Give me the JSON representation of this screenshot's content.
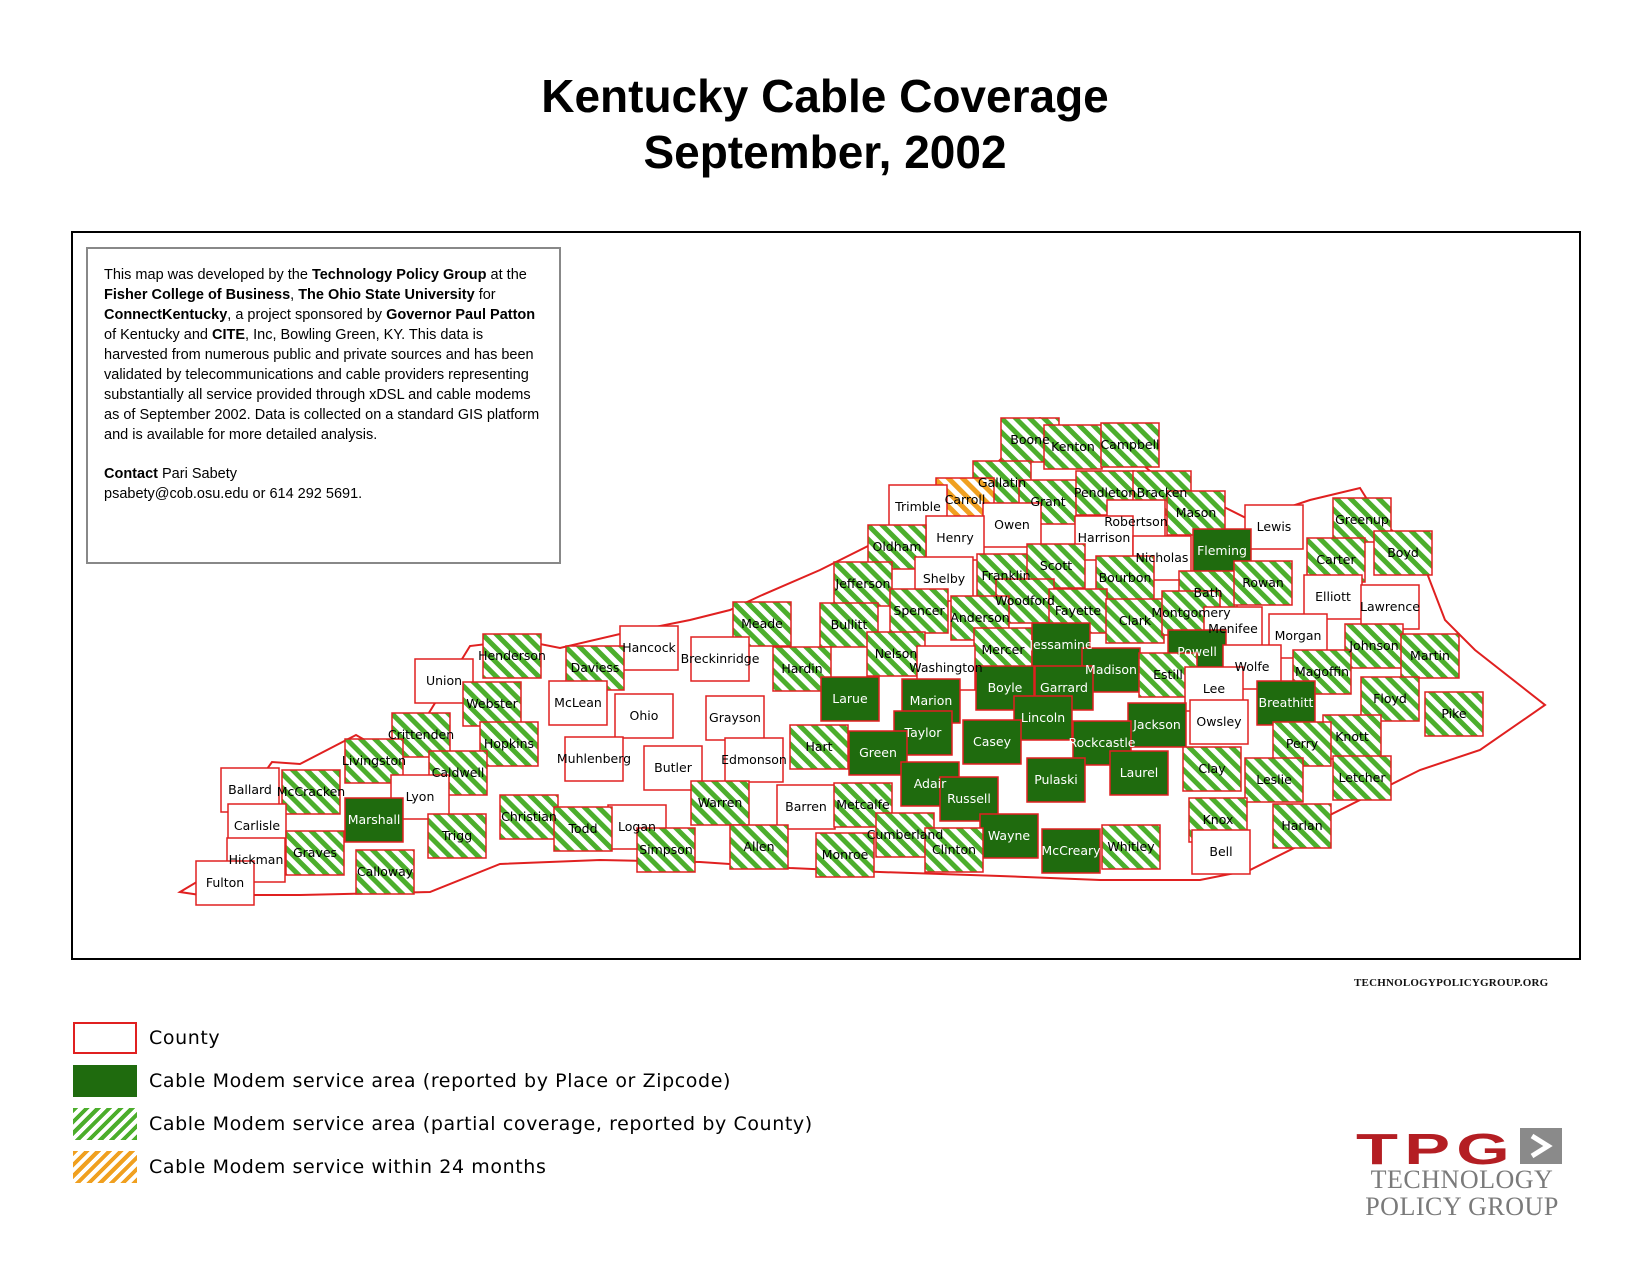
{
  "title": {
    "line1": "Kentucky Cable Coverage",
    "line2": "September, 2002"
  },
  "info": {
    "p1_a": "This map was developed by the ",
    "p1_b": "Technology Policy Group",
    "p1_c": " at the ",
    "p1_d": "Fisher College of Business",
    "p1_e": ", ",
    "p1_f": "The Ohio State University",
    "p1_g": " for ",
    "p1_h": "ConnectKentucky",
    "p1_i": ", a project sponsored by ",
    "p1_j": "Governor Paul Patton",
    "p1_k": " of Kentucky and ",
    "p1_l": "CITE",
    "p1_m": ", Inc, Bowling Green, KY.  This data is harvested from numerous public and private sources and has been validated by telecommunications and cable providers representing substantially all service provided through xDSL and cable modems as of September 2002.  Data is collected on a standard GIS platform and is available for more detailed analysis.",
    "contact_label": "Contact",
    "contact_name": " Pari Sabety",
    "contact_line": "psabety@cob.osu.edu or 614 292 5691."
  },
  "website": "TECHNOLOGYPOLICYGROUP.ORG",
  "legend": [
    {
      "label": "County",
      "style": "county"
    },
    {
      "label": "Cable Modem service area (reported by Place or Zipcode)",
      "style": "solid"
    },
    {
      "label": "Cable Modem service area (partial coverage, reported by County)",
      "style": "hatch-green"
    },
    {
      "label": "Cable Modem service within 24 months",
      "style": "hatch-orange"
    }
  ],
  "colors": {
    "county_border": "#e02020",
    "solid_green": "#1f6b0e",
    "hatch_green": "#4cae2c",
    "hatch_orange": "#f0a020",
    "logo_red": "#b41e23",
    "logo_grey": "#7a7a7a"
  },
  "logo": {
    "mark": "TPG",
    "line1": "TECHNOLOGY",
    "line2": "POLICY GROUP"
  },
  "counties": [
    {
      "name": "Boone",
      "coverage": "partial"
    },
    {
      "name": "Kenton",
      "coverage": "partial"
    },
    {
      "name": "Campbell",
      "coverage": "partial"
    },
    {
      "name": "Gallatin",
      "coverage": "partial"
    },
    {
      "name": "Carroll",
      "coverage": "within-24-months"
    },
    {
      "name": "Trimble",
      "coverage": "none"
    },
    {
      "name": "Grant",
      "coverage": "partial"
    },
    {
      "name": "Pendleton",
      "coverage": "partial"
    },
    {
      "name": "Bracken",
      "coverage": "partial"
    },
    {
      "name": "Mason",
      "coverage": "partial"
    },
    {
      "name": "Robertson",
      "coverage": "none"
    },
    {
      "name": "Owen",
      "coverage": "none"
    },
    {
      "name": "Henry",
      "coverage": "none"
    },
    {
      "name": "Harrison",
      "coverage": "none"
    },
    {
      "name": "Lewis",
      "coverage": "none"
    },
    {
      "name": "Greenup",
      "coverage": "partial"
    },
    {
      "name": "Boyd",
      "coverage": "partial"
    },
    {
      "name": "Fleming",
      "coverage": "place"
    },
    {
      "name": "Oldham",
      "coverage": "partial"
    },
    {
      "name": "Carter",
      "coverage": "partial"
    },
    {
      "name": "Nicholas",
      "coverage": "none"
    },
    {
      "name": "Shelby",
      "coverage": "none"
    },
    {
      "name": "Franklin",
      "coverage": "partial"
    },
    {
      "name": "Scott",
      "coverage": "partial"
    },
    {
      "name": "Bourbon",
      "coverage": "partial"
    },
    {
      "name": "Bath",
      "coverage": "partial"
    },
    {
      "name": "Rowan",
      "coverage": "partial"
    },
    {
      "name": "Elliott",
      "coverage": "none"
    },
    {
      "name": "Jefferson",
      "coverage": "partial"
    },
    {
      "name": "Woodford",
      "coverage": "partial"
    },
    {
      "name": "Lawrence",
      "coverage": "none"
    },
    {
      "name": "Spencer",
      "coverage": "partial"
    },
    {
      "name": "Anderson",
      "coverage": "partial"
    },
    {
      "name": "Fayette",
      "coverage": "partial"
    },
    {
      "name": "Clark",
      "coverage": "partial"
    },
    {
      "name": "Montgomery",
      "coverage": "partial"
    },
    {
      "name": "Meade",
      "coverage": "partial"
    },
    {
      "name": "Bullitt",
      "coverage": "partial"
    },
    {
      "name": "Menifee",
      "coverage": "none"
    },
    {
      "name": "Morgan",
      "coverage": "none"
    },
    {
      "name": "Johnson",
      "coverage": "partial"
    },
    {
      "name": "Hancock",
      "coverage": "none"
    },
    {
      "name": "Nelson",
      "coverage": "partial"
    },
    {
      "name": "Mercer",
      "coverage": "partial"
    },
    {
      "name": "Jessamine",
      "coverage": "place"
    },
    {
      "name": "Powell",
      "coverage": "place"
    },
    {
      "name": "Martin",
      "coverage": "partial"
    },
    {
      "name": "Henderson",
      "coverage": "partial"
    },
    {
      "name": "Daviess",
      "coverage": "partial"
    },
    {
      "name": "Breckinridge",
      "coverage": "none"
    },
    {
      "name": "Hardin",
      "coverage": "partial"
    },
    {
      "name": "Washington",
      "coverage": "none"
    },
    {
      "name": "Madison",
      "coverage": "place"
    },
    {
      "name": "Estill",
      "coverage": "partial"
    },
    {
      "name": "Wolfe",
      "coverage": "none"
    },
    {
      "name": "Magoffin",
      "coverage": "partial"
    },
    {
      "name": "Union",
      "coverage": "none"
    },
    {
      "name": "Boyle",
      "coverage": "place"
    },
    {
      "name": "Garrard",
      "coverage": "place"
    },
    {
      "name": "Lee",
      "coverage": "none"
    },
    {
      "name": "Floyd",
      "coverage": "partial"
    },
    {
      "name": "Larue",
      "coverage": "place"
    },
    {
      "name": "Marion",
      "coverage": "place"
    },
    {
      "name": "Breathitt",
      "coverage": "place"
    },
    {
      "name": "Webster",
      "coverage": "partial"
    },
    {
      "name": "McLean",
      "coverage": "none"
    },
    {
      "name": "Pike",
      "coverage": "partial"
    },
    {
      "name": "Ohio",
      "coverage": "none"
    },
    {
      "name": "Grayson",
      "coverage": "none"
    },
    {
      "name": "Lincoln",
      "coverage": "place"
    },
    {
      "name": "Jackson",
      "coverage": "place"
    },
    {
      "name": "Owsley",
      "coverage": "none"
    },
    {
      "name": "Crittenden",
      "coverage": "partial"
    },
    {
      "name": "Taylor",
      "coverage": "place"
    },
    {
      "name": "Knott",
      "coverage": "partial"
    },
    {
      "name": "Hopkins",
      "coverage": "partial"
    },
    {
      "name": "Casey",
      "coverage": "place"
    },
    {
      "name": "Rockcastle",
      "coverage": "place"
    },
    {
      "name": "Perry",
      "coverage": "partial"
    },
    {
      "name": "Hart",
      "coverage": "partial"
    },
    {
      "name": "Livingston",
      "coverage": "partial"
    },
    {
      "name": "Green",
      "coverage": "place"
    },
    {
      "name": "Muhlenberg",
      "coverage": "none"
    },
    {
      "name": "Edmonson",
      "coverage": "none"
    },
    {
      "name": "Butler",
      "coverage": "none"
    },
    {
      "name": "Caldwell",
      "coverage": "partial"
    },
    {
      "name": "Laurel",
      "coverage": "place"
    },
    {
      "name": "Clay",
      "coverage": "partial"
    },
    {
      "name": "Pulaski",
      "coverage": "place"
    },
    {
      "name": "Leslie",
      "coverage": "partial"
    },
    {
      "name": "Letcher",
      "coverage": "partial"
    },
    {
      "name": "Adair",
      "coverage": "place"
    },
    {
      "name": "Ballard",
      "coverage": "none"
    },
    {
      "name": "McCracken",
      "coverage": "partial"
    },
    {
      "name": "Lyon",
      "coverage": "none"
    },
    {
      "name": "Russell",
      "coverage": "place"
    },
    {
      "name": "Christian",
      "coverage": "partial"
    },
    {
      "name": "Warren",
      "coverage": "partial"
    },
    {
      "name": "Barren",
      "coverage": "none"
    },
    {
      "name": "Metcalfe",
      "coverage": "partial"
    },
    {
      "name": "Marshall",
      "coverage": "place"
    },
    {
      "name": "Carlisle",
      "coverage": "none"
    },
    {
      "name": "Logan",
      "coverage": "none"
    },
    {
      "name": "Knox",
      "coverage": "partial"
    },
    {
      "name": "Harlan",
      "coverage": "partial"
    },
    {
      "name": "Todd",
      "coverage": "partial"
    },
    {
      "name": "Cumberland",
      "coverage": "partial"
    },
    {
      "name": "Trigg",
      "coverage": "partial"
    },
    {
      "name": "Allen",
      "coverage": "partial"
    },
    {
      "name": "Wayne",
      "coverage": "place"
    },
    {
      "name": "Graves",
      "coverage": "partial"
    },
    {
      "name": "Simpson",
      "coverage": "partial"
    },
    {
      "name": "Monroe",
      "coverage": "partial"
    },
    {
      "name": "Clinton",
      "coverage": "partial"
    },
    {
      "name": "Whitley",
      "coverage": "partial"
    },
    {
      "name": "Bell",
      "coverage": "none"
    },
    {
      "name": "McCreary",
      "coverage": "place"
    },
    {
      "name": "Hickman",
      "coverage": "none"
    },
    {
      "name": "Calloway",
      "coverage": "partial"
    },
    {
      "name": "Fulton",
      "coverage": "none"
    }
  ]
}
